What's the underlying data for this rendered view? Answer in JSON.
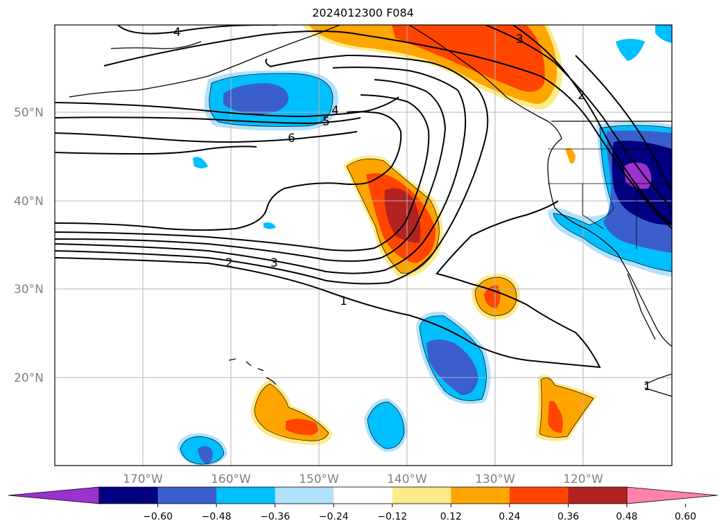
{
  "title": "2024012300 F084",
  "lat_labels": [
    "50°N",
    "40°N",
    "30°N",
    "20°N"
  ],
  "lon_labels": [
    "170°W",
    "160°W",
    "150°W",
    "140°W",
    "130°W",
    "120°W"
  ],
  "contour_labels": [
    "4",
    "4",
    "5",
    "6",
    "3",
    "2",
    "2",
    "3",
    "1",
    "1"
  ],
  "colorbar": {
    "ticks": [
      "−0.60",
      "−0.48",
      "−0.36",
      "−0.24",
      "−0.12",
      "0.12",
      "0.24",
      "0.36",
      "0.48",
      "0.60"
    ],
    "colors": [
      "#9a32cd",
      "#000080",
      "#3a5fcd",
      "#00bfff",
      "#b0e2ff",
      "#ffffff",
      "#fdeb8a",
      "#ffa500",
      "#ff4500",
      "#b22222",
      "#ff82ab"
    ]
  },
  "colors": {
    "frame": "#000000",
    "grid": "#b3b3b3",
    "contour": "#000000",
    "coast": "#000000"
  }
}
